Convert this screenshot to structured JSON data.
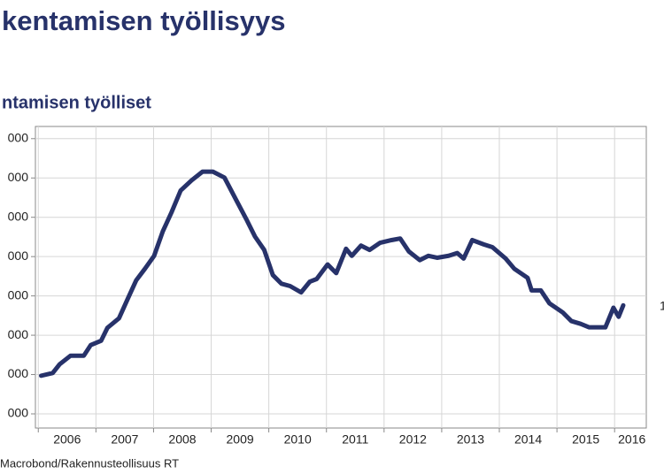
{
  "chart_data": {
    "type": "line",
    "title": "kentamisen työllisyys",
    "subtitle": "ntamisen työlliset",
    "source": "Macrobond/Rakennusteollisuus RT",
    "annotation": "1",
    "x": [
      2006.05,
      2006.25,
      2006.37,
      2006.56,
      2006.79,
      2006.91,
      2007.09,
      2007.2,
      2007.4,
      2007.55,
      2007.7,
      2007.85,
      2008.01,
      2008.16,
      2008.31,
      2008.47,
      2008.66,
      2008.85,
      2009.03,
      2009.23,
      2009.43,
      2009.61,
      2009.76,
      2009.92,
      2010.07,
      2010.22,
      2010.37,
      2010.56,
      2010.71,
      2010.83,
      2011.02,
      2011.17,
      2011.34,
      2011.44,
      2011.6,
      2011.75,
      2011.93,
      2012.13,
      2012.28,
      2012.43,
      2012.62,
      2012.77,
      2012.92,
      2013.12,
      2013.27,
      2013.38,
      2013.53,
      2013.73,
      2013.88,
      2014.11,
      2014.26,
      2014.49,
      2014.56,
      2014.72,
      2014.87,
      2015.1,
      2015.25,
      2015.41,
      2015.56,
      2015.72,
      2015.84,
      2015.98,
      2016.07,
      2016.15
    ],
    "series": [
      {
        "color": "#27326a",
        "values": [
          139700,
          140400,
          142600,
          144800,
          144800,
          147500,
          148600,
          151900,
          154300,
          159200,
          164000,
          166900,
          170200,
          176400,
          181200,
          186800,
          189400,
          191600,
          191600,
          190100,
          184500,
          179500,
          175100,
          171700,
          165300,
          163100,
          162500,
          160900,
          163600,
          164300,
          168000,
          165800,
          172000,
          170200,
          172800,
          171700,
          173500,
          174200,
          174600,
          171300,
          169100,
          170200,
          169700,
          170200,
          170900,
          169500,
          174200,
          173100,
          172400,
          169500,
          166900,
          164600,
          161400,
          161400,
          158100,
          155800,
          153600,
          152900,
          152000,
          152000,
          152000,
          157000,
          154700,
          157600
        ]
      }
    ],
    "xlim": [
      2005.95,
      2016.55
    ],
    "xticks": [
      {
        "value": 2006.5,
        "label": "2006"
      },
      {
        "value": 2007.5,
        "label": "2007"
      },
      {
        "value": 2008.5,
        "label": "2008"
      },
      {
        "value": 2009.5,
        "label": "2009"
      },
      {
        "value": 2010.5,
        "label": "2010"
      },
      {
        "value": 2011.5,
        "label": "2011"
      },
      {
        "value": 2012.5,
        "label": "2012"
      },
      {
        "value": 2013.5,
        "label": "2013"
      },
      {
        "value": 2014.5,
        "label": "2014"
      },
      {
        "value": 2015.5,
        "label": "2015"
      },
      {
        "value": 2016.3,
        "label": "2016"
      }
    ],
    "xgrid": [
      2006,
      2007,
      2008,
      2009,
      2010,
      2011,
      2012,
      2013,
      2014,
      2015,
      2016
    ],
    "ylim": [
      126400,
      203100
    ],
    "yticks": [
      {
        "value": 200000,
        "label": "000"
      },
      {
        "value": 190000,
        "label": "000"
      },
      {
        "value": 180000,
        "label": "000"
      },
      {
        "value": 170000,
        "label": "000"
      },
      {
        "value": 160000,
        "label": "000"
      },
      {
        "value": 150000,
        "label": "000"
      },
      {
        "value": 140000,
        "label": "000"
      },
      {
        "value": 130000,
        "label": "000"
      }
    ],
    "grid": true
  }
}
